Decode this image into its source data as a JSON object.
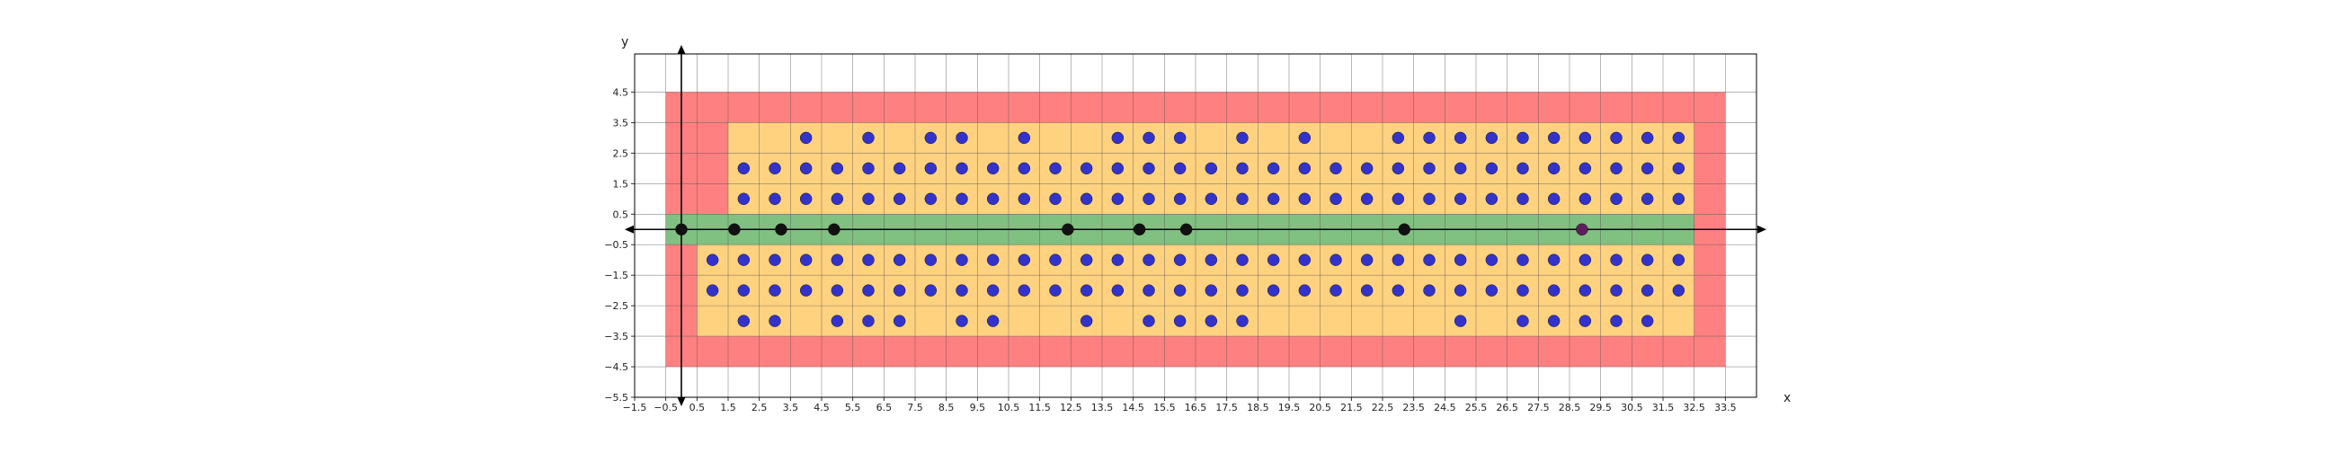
{
  "chart_data": {
    "type": "scatter",
    "title": "",
    "xlabel": "x",
    "ylabel": "y",
    "xlim": [
      -1.5,
      34.5
    ],
    "ylim": [
      -5.5,
      5.75
    ],
    "grid": true,
    "x_ticks": [
      -1.5,
      -0.5,
      0.5,
      1.5,
      2.5,
      3.5,
      4.5,
      5.5,
      6.5,
      7.5,
      8.5,
      9.5,
      10.5,
      11.5,
      12.5,
      13.5,
      14.5,
      15.5,
      16.5,
      17.5,
      18.5,
      19.5,
      20.5,
      21.5,
      22.5,
      23.5,
      24.5,
      25.5,
      26.5,
      27.5,
      28.5,
      29.5,
      30.5,
      31.5,
      32.5,
      33.5
    ],
    "x_tick_labels": [
      "−1.5",
      "−0.5",
      "0.5",
      "1.5",
      "2.5",
      "3.5",
      "4.5",
      "5.5",
      "6.5",
      "7.5",
      "8.5",
      "9.5",
      "10.5",
      "11.5",
      "12.5",
      "13.5",
      "14.5",
      "15.5",
      "16.5",
      "17.5",
      "18.5",
      "19.5",
      "20.5",
      "21.5",
      "22.5",
      "23.5",
      "24.5",
      "25.5",
      "26.5",
      "27.5",
      "28.5",
      "29.5",
      "30.5",
      "31.5",
      "32.5",
      "33.5"
    ],
    "y_ticks": [
      4.5,
      3.5,
      2.5,
      1.5,
      0.5,
      -0.5,
      -1.5,
      -2.5,
      -3.5,
      -4.5,
      -5.5
    ],
    "y_tick_labels": [
      "4.5",
      "3.5",
      "2.5",
      "1.5",
      "0.5",
      "−0.5",
      "−1.5",
      "−2.5",
      "−3.5",
      "−4.5",
      "−5.5"
    ],
    "regions": [
      {
        "color": "#ff8080",
        "rects": [
          [
            -0.5,
            33.5,
            -4.5,
            4.5
          ]
        ]
      },
      {
        "color": "#ffd280",
        "rects": [
          [
            1.5,
            32.5,
            0.5,
            3.5
          ],
          [
            0.5,
            32.5,
            -3.5,
            -0.5
          ]
        ]
      },
      {
        "color": "#80c080",
        "rects": [
          [
            -0.5,
            32.5,
            -0.5,
            0.5
          ]
        ]
      }
    ],
    "series": [
      {
        "color": "#3333cc",
        "points": [
          [
            4,
            3
          ],
          [
            6,
            3
          ],
          [
            8,
            3
          ],
          [
            9,
            3
          ],
          [
            11,
            3
          ],
          [
            14,
            3
          ],
          [
            15,
            3
          ],
          [
            16,
            3
          ],
          [
            18,
            3
          ],
          [
            20,
            3
          ],
          [
            23,
            3
          ],
          [
            24,
            3
          ],
          [
            25,
            3
          ],
          [
            26,
            3
          ],
          [
            27,
            3
          ],
          [
            28,
            3
          ],
          [
            29,
            3
          ],
          [
            30,
            3
          ],
          [
            31,
            3
          ],
          [
            32,
            3
          ],
          [
            2,
            2
          ],
          [
            3,
            2
          ],
          [
            4,
            2
          ],
          [
            5,
            2
          ],
          [
            6,
            2
          ],
          [
            7,
            2
          ],
          [
            8,
            2
          ],
          [
            9,
            2
          ],
          [
            10,
            2
          ],
          [
            11,
            2
          ],
          [
            12,
            2
          ],
          [
            13,
            2
          ],
          [
            14,
            2
          ],
          [
            15,
            2
          ],
          [
            16,
            2
          ],
          [
            17,
            2
          ],
          [
            18,
            2
          ],
          [
            19,
            2
          ],
          [
            20,
            2
          ],
          [
            21,
            2
          ],
          [
            22,
            2
          ],
          [
            23,
            2
          ],
          [
            24,
            2
          ],
          [
            25,
            2
          ],
          [
            26,
            2
          ],
          [
            27,
            2
          ],
          [
            28,
            2
          ],
          [
            29,
            2
          ],
          [
            30,
            2
          ],
          [
            31,
            2
          ],
          [
            32,
            2
          ],
          [
            2,
            1
          ],
          [
            3,
            1
          ],
          [
            4,
            1
          ],
          [
            5,
            1
          ],
          [
            6,
            1
          ],
          [
            7,
            1
          ],
          [
            8,
            1
          ],
          [
            9,
            1
          ],
          [
            10,
            1
          ],
          [
            11,
            1
          ],
          [
            12,
            1
          ],
          [
            13,
            1
          ],
          [
            14,
            1
          ],
          [
            15,
            1
          ],
          [
            16,
            1
          ],
          [
            17,
            1
          ],
          [
            18,
            1
          ],
          [
            19,
            1
          ],
          [
            20,
            1
          ],
          [
            21,
            1
          ],
          [
            22,
            1
          ],
          [
            23,
            1
          ],
          [
            24,
            1
          ],
          [
            25,
            1
          ],
          [
            26,
            1
          ],
          [
            27,
            1
          ],
          [
            28,
            1
          ],
          [
            29,
            1
          ],
          [
            30,
            1
          ],
          [
            31,
            1
          ],
          [
            32,
            1
          ],
          [
            1,
            -1
          ],
          [
            2,
            -1
          ],
          [
            3,
            -1
          ],
          [
            4,
            -1
          ],
          [
            5,
            -1
          ],
          [
            6,
            -1
          ],
          [
            7,
            -1
          ],
          [
            8,
            -1
          ],
          [
            9,
            -1
          ],
          [
            10,
            -1
          ],
          [
            11,
            -1
          ],
          [
            12,
            -1
          ],
          [
            13,
            -1
          ],
          [
            14,
            -1
          ],
          [
            15,
            -1
          ],
          [
            16,
            -1
          ],
          [
            17,
            -1
          ],
          [
            18,
            -1
          ],
          [
            19,
            -1
          ],
          [
            20,
            -1
          ],
          [
            21,
            -1
          ],
          [
            22,
            -1
          ],
          [
            23,
            -1
          ],
          [
            24,
            -1
          ],
          [
            25,
            -1
          ],
          [
            26,
            -1
          ],
          [
            27,
            -1
          ],
          [
            28,
            -1
          ],
          [
            29,
            -1
          ],
          [
            30,
            -1
          ],
          [
            31,
            -1
          ],
          [
            32,
            -1
          ],
          [
            1,
            -2
          ],
          [
            2,
            -2
          ],
          [
            3,
            -2
          ],
          [
            4,
            -2
          ],
          [
            5,
            -2
          ],
          [
            6,
            -2
          ],
          [
            7,
            -2
          ],
          [
            8,
            -2
          ],
          [
            9,
            -2
          ],
          [
            10,
            -2
          ],
          [
            11,
            -2
          ],
          [
            12,
            -2
          ],
          [
            13,
            -2
          ],
          [
            14,
            -2
          ],
          [
            15,
            -2
          ],
          [
            16,
            -2
          ],
          [
            17,
            -2
          ],
          [
            18,
            -2
          ],
          [
            19,
            -2
          ],
          [
            20,
            -2
          ],
          [
            21,
            -2
          ],
          [
            22,
            -2
          ],
          [
            23,
            -2
          ],
          [
            24,
            -2
          ],
          [
            25,
            -2
          ],
          [
            26,
            -2
          ],
          [
            27,
            -2
          ],
          [
            28,
            -2
          ],
          [
            29,
            -2
          ],
          [
            30,
            -2
          ],
          [
            31,
            -2
          ],
          [
            32,
            -2
          ],
          [
            2,
            -3
          ],
          [
            3,
            -3
          ],
          [
            5,
            -3
          ],
          [
            6,
            -3
          ],
          [
            7,
            -3
          ],
          [
            9,
            -3
          ],
          [
            10,
            -3
          ],
          [
            13,
            -3
          ],
          [
            15,
            -3
          ],
          [
            16,
            -3
          ],
          [
            17,
            -3
          ],
          [
            18,
            -3
          ],
          [
            25,
            -3
          ],
          [
            27,
            -3
          ],
          [
            28,
            -3
          ],
          [
            29,
            -3
          ],
          [
            30,
            -3
          ],
          [
            31,
            -3
          ]
        ]
      },
      {
        "color": "#111111",
        "points": [
          [
            0,
            0
          ],
          [
            1.7,
            0
          ],
          [
            3.2,
            0
          ],
          [
            4.9,
            0
          ],
          [
            12.4,
            0
          ],
          [
            14.7,
            0
          ],
          [
            16.2,
            0
          ],
          [
            23.2,
            0
          ]
        ]
      },
      {
        "color": "#5c1f5c",
        "points": [
          [
            28.9,
            0
          ]
        ]
      }
    ]
  }
}
